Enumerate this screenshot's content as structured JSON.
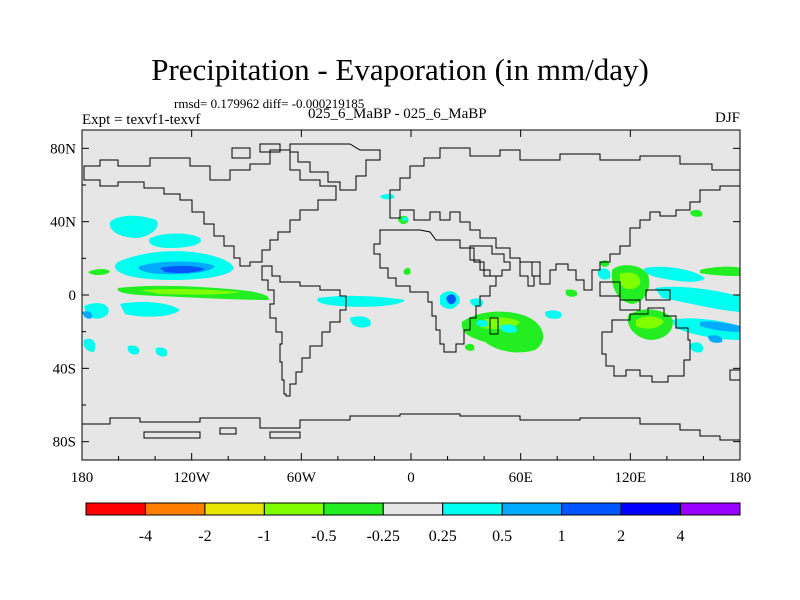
{
  "title": "Precipitation - Evaporation (in mm/day)",
  "stats": "rmsd= 0.179962  diff= -0.000219185",
  "experiment": "Expt = texvf1-texvf",
  "comparison": "025_6_MaBP - 025_6_MaBP",
  "season": "DJF",
  "colors": {
    "ocean_bg": "#e6e6e6",
    "coast": "#000000"
  },
  "chart_data": {
    "type": "heatmap",
    "title": "Precipitation - Evaporation (in mm/day)",
    "lon_range": [
      -180,
      180
    ],
    "lat_range": [
      -90,
      90
    ],
    "x_ticks": [
      {
        "lon": -180,
        "label": "180"
      },
      {
        "lon": -120,
        "label": "120W"
      },
      {
        "lon": -60,
        "label": "60W"
      },
      {
        "lon": 0,
        "label": "0"
      },
      {
        "lon": 60,
        "label": "60E"
      },
      {
        "lon": 120,
        "label": "120E"
      },
      {
        "lon": 180,
        "label": "180"
      }
    ],
    "y_ticks": [
      {
        "lat": 80,
        "label": "80N"
      },
      {
        "lat": 40,
        "label": "40N"
      },
      {
        "lat": 0,
        "label": "0"
      },
      {
        "lat": -40,
        "label": "40S"
      },
      {
        "lat": -80,
        "label": "80S"
      }
    ],
    "colorbar": {
      "labels": [
        "-4",
        "-2",
        "-1",
        "-0.5",
        "-0.25",
        "0.25",
        "0.5",
        "1",
        "2",
        "4"
      ],
      "colors": [
        "#ff0000",
        "#ff7f00",
        "#e6e600",
        "#7fff00",
        "#22ee22",
        "#e6e6e6",
        "#00ffee",
        "#00aaff",
        "#0055ff",
        "#0000ff",
        "#9900ff"
      ]
    },
    "regions": [
      {
        "name": "N Pacific cyan band",
        "level": "0.25",
        "color": "#00ffee",
        "lon": -125,
        "lat": 18,
        "rlon": 42,
        "rlat": 8
      },
      {
        "name": "N Pacific core",
        "level": "2",
        "color": "#0055ff",
        "lon": -125,
        "lat": 16,
        "rlon": 18,
        "rlat": 3
      },
      {
        "name": "NW Pacific cyan",
        "level": "0.25",
        "color": "#00ffee",
        "lon": -167,
        "lat": 42,
        "rlon": 12,
        "rlat": 6
      },
      {
        "name": "ITCZ green",
        "level": "-0.25",
        "color": "#22ee22",
        "lon": -135,
        "lat": 2,
        "rlon": 48,
        "rlat": 2
      },
      {
        "name": "Africa blue spot",
        "level": "2",
        "color": "#0055ff",
        "lon": 22,
        "lat": -4,
        "rlon": 2,
        "rlat": 3
      },
      {
        "name": "Indian Ocean green",
        "level": "-0.25",
        "color": "#22ee22",
        "lon": 50,
        "lat": -22,
        "rlon": 15,
        "rlat": 12
      },
      {
        "name": "Maritime Continent green",
        "level": "-0.25",
        "color": "#22ee22",
        "lon": 125,
        "lat": -20,
        "rlon": 14,
        "rlat": 9
      },
      {
        "name": "W Pacific cyan",
        "level": "0.25",
        "color": "#00ffee",
        "lon": 150,
        "lat": -8,
        "rlon": 20,
        "rlat": 5
      }
    ]
  }
}
